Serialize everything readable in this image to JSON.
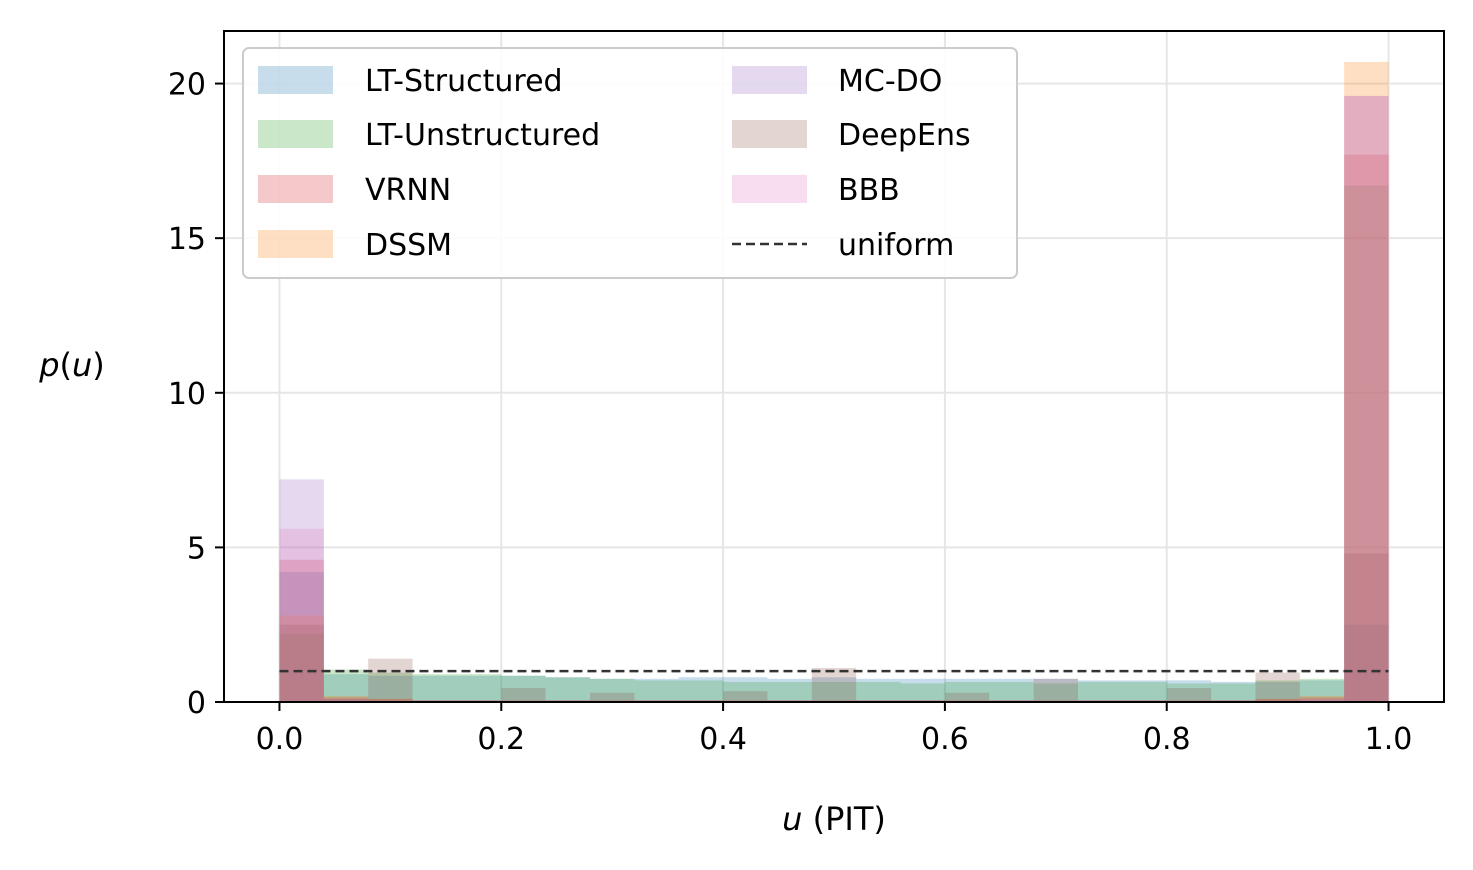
{
  "chart_data": {
    "type": "bar",
    "subtype": "overlaid-histogram",
    "title": "",
    "xlabel": "u (PIT)",
    "xlabel_italic_part": "u",
    "xlabel_rest": " (PIT)",
    "ylabel": "p(u)",
    "xlim": [
      -0.05,
      1.05
    ],
    "ylim": [
      0,
      21.7
    ],
    "xticks": [
      0.0,
      0.2,
      0.4,
      0.6,
      0.8,
      1.0
    ],
    "xtick_labels": [
      "0.0",
      "0.2",
      "0.4",
      "0.6",
      "0.8",
      "1.0"
    ],
    "yticks": [
      0,
      5,
      10,
      15,
      20
    ],
    "ytick_labels": [
      "0",
      "5",
      "10",
      "15",
      "20"
    ],
    "grid": true,
    "legend_position": "top-left",
    "legend_columns": 2,
    "bin_edges": [
      0.0,
      0.04,
      0.08,
      0.12,
      0.16,
      0.2,
      0.24,
      0.28,
      0.32,
      0.36,
      0.4,
      0.44,
      0.48,
      0.52,
      0.56,
      0.6,
      0.64,
      0.68,
      0.72,
      0.76,
      0.8,
      0.84,
      0.88,
      0.92,
      0.96,
      1.0
    ],
    "series": [
      {
        "name": "LT-Structured",
        "color": "#1f77b4",
        "values": [
          4.2,
          0.9,
          0.85,
          0.85,
          0.85,
          0.85,
          0.8,
          0.75,
          0.75,
          0.8,
          0.8,
          0.75,
          0.8,
          0.75,
          0.75,
          0.75,
          0.75,
          0.75,
          0.7,
          0.7,
          0.7,
          0.65,
          0.65,
          0.7,
          2.5
        ]
      },
      {
        "name": "LT-Unstructured",
        "color": "#2ca02c",
        "values": [
          2.2,
          1.05,
          0.95,
          0.9,
          0.9,
          0.85,
          0.8,
          0.75,
          0.7,
          0.7,
          0.65,
          0.65,
          0.65,
          0.65,
          0.6,
          0.65,
          0.65,
          0.6,
          0.65,
          0.65,
          0.6,
          0.6,
          0.7,
          0.75,
          16.7
        ]
      },
      {
        "name": "VRNN",
        "color": "#d62728",
        "values": [
          4.6,
          0.15,
          0.1,
          0.05,
          0.05,
          0.05,
          0.05,
          0.05,
          0.05,
          0.05,
          0.05,
          0.05,
          0.05,
          0.05,
          0.05,
          0.05,
          0.05,
          0.05,
          0.05,
          0.05,
          0.05,
          0.05,
          0.1,
          0.15,
          17.7
        ]
      },
      {
        "name": "DSSM",
        "color": "#ff7f0e",
        "values": [
          2.8,
          0.2,
          0.1,
          0.05,
          0.05,
          0.05,
          0.05,
          0.05,
          0.05,
          0.05,
          0.05,
          0.05,
          0.05,
          0.05,
          0.05,
          0.05,
          0.05,
          0.05,
          0.05,
          0.05,
          0.05,
          0.05,
          0.1,
          0.2,
          20.7
        ]
      },
      {
        "name": "MC-DO",
        "color": "#9467bd",
        "values": [
          7.2,
          0.1,
          0.05,
          0.05,
          0.05,
          0.05,
          0.05,
          0.05,
          0.05,
          0.05,
          0.05,
          0.05,
          0.05,
          0.05,
          0.05,
          0.05,
          0.05,
          0.05,
          0.05,
          0.05,
          0.05,
          0.05,
          0.05,
          0.1,
          19.6
        ]
      },
      {
        "name": "DeepEns",
        "color": "#8c564b",
        "values": [
          2.5,
          0.1,
          1.4,
          0.05,
          0.05,
          0.45,
          0.05,
          0.3,
          0.05,
          0.05,
          0.35,
          0.05,
          1.1,
          0.05,
          0.05,
          0.3,
          0.05,
          0.75,
          0.05,
          0.05,
          0.45,
          0.05,
          0.95,
          0.05,
          4.8
        ]
      },
      {
        "name": "BBB",
        "color": "#e377c2",
        "values": [
          5.6,
          0.1,
          0.05,
          0.05,
          0.05,
          0.05,
          0.05,
          0.05,
          0.05,
          0.05,
          0.05,
          0.05,
          0.05,
          0.05,
          0.05,
          0.05,
          0.05,
          0.05,
          0.05,
          0.05,
          0.05,
          0.05,
          0.05,
          0.1,
          19.6
        ]
      }
    ],
    "reference_line": {
      "name": "uniform",
      "x": [
        0.0,
        1.0
      ],
      "y": [
        1.0,
        1.0
      ],
      "style": "dashed",
      "color": "#333333"
    }
  }
}
